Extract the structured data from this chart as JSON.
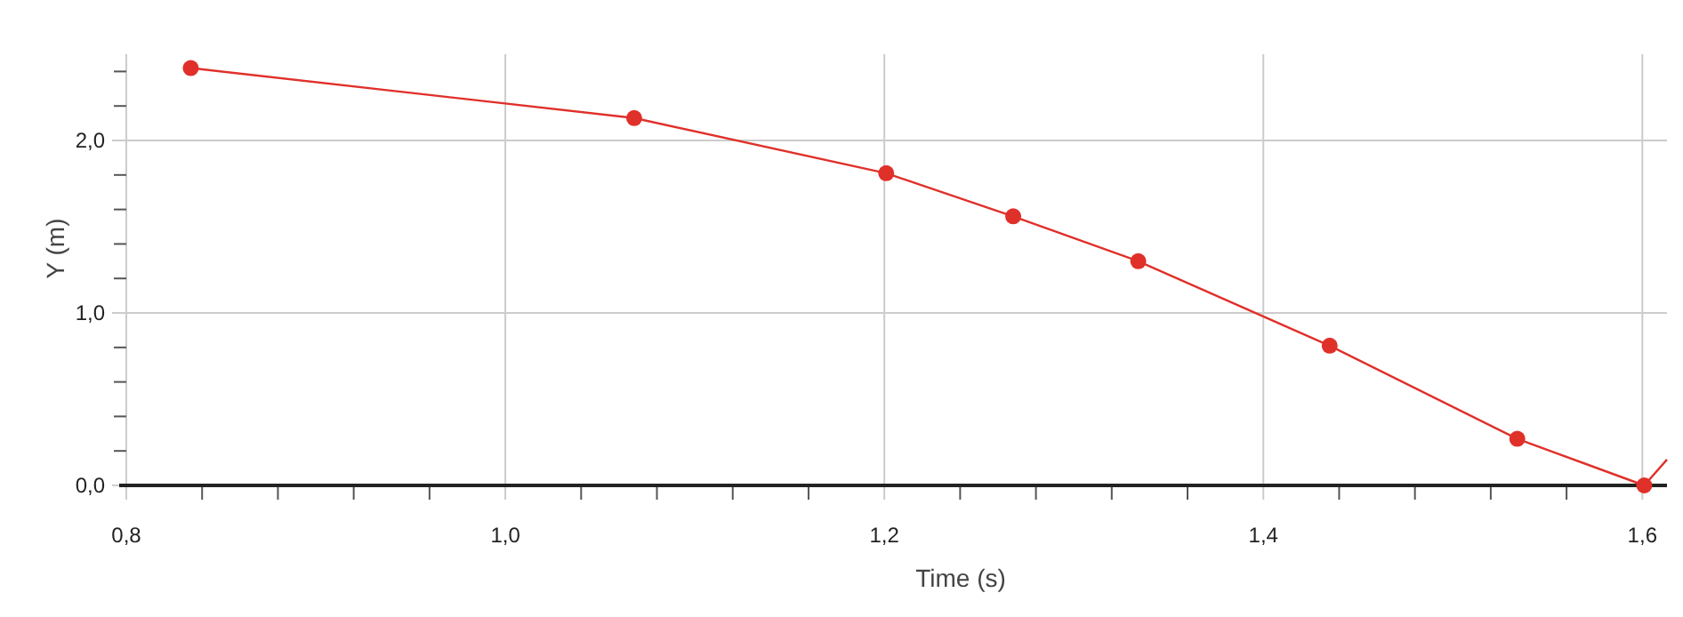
{
  "chart_data": {
    "type": "line",
    "xlabel": "Time (s)",
    "ylabel": "Y (m)",
    "xlim": [
      0.8,
      1.613
    ],
    "ylim": [
      0,
      2.5
    ],
    "xticks": [
      {
        "value": 0.8,
        "label": "0,8"
      },
      {
        "value": 0.84,
        "label": null
      },
      {
        "value": 0.88,
        "label": null
      },
      {
        "value": 0.92,
        "label": null
      },
      {
        "value": 0.96,
        "label": null
      },
      {
        "value": 1.0,
        "label": "1,0"
      },
      {
        "value": 1.04,
        "label": null
      },
      {
        "value": 1.08,
        "label": null
      },
      {
        "value": 1.12,
        "label": null
      },
      {
        "value": 1.16,
        "label": null
      },
      {
        "value": 1.2,
        "label": "1,2"
      },
      {
        "value": 1.24,
        "label": null
      },
      {
        "value": 1.28,
        "label": null
      },
      {
        "value": 1.32,
        "label": null
      },
      {
        "value": 1.36,
        "label": null
      },
      {
        "value": 1.4,
        "label": "1,4"
      },
      {
        "value": 1.44,
        "label": null
      },
      {
        "value": 1.48,
        "label": null
      },
      {
        "value": 1.52,
        "label": null
      },
      {
        "value": 1.56,
        "label": null
      },
      {
        "value": 1.6,
        "label": "1,6"
      }
    ],
    "yticks": [
      {
        "value": 0,
        "label": "0,0"
      },
      {
        "value": 0.2,
        "label": null
      },
      {
        "value": 0.4,
        "label": null
      },
      {
        "value": 0.6,
        "label": null
      },
      {
        "value": 0.8,
        "label": null
      },
      {
        "value": 1.0,
        "label": "1,0"
      },
      {
        "value": 1.2,
        "label": null
      },
      {
        "value": 1.4,
        "label": null
      },
      {
        "value": 1.6,
        "label": null
      },
      {
        "value": 1.8,
        "label": null
      },
      {
        "value": 2.0,
        "label": "2,0"
      },
      {
        "value": 2.2,
        "label": null
      },
      {
        "value": 2.4,
        "label": null
      }
    ],
    "grid": true,
    "series": [
      {
        "color": "#e0302a",
        "marker": "circle",
        "x": [
          0.834,
          1.068,
          1.201,
          1.268,
          1.334,
          1.435,
          1.534,
          1.601
        ],
        "values": [
          2.42,
          2.13,
          1.81,
          1.56,
          1.3,
          0.81,
          0.27,
          0.0
        ]
      },
      {
        "color": "#e0302a",
        "marker": "none",
        "x": [
          1.601,
          1.613
        ],
        "values": [
          0.0,
          0.15
        ]
      }
    ]
  }
}
